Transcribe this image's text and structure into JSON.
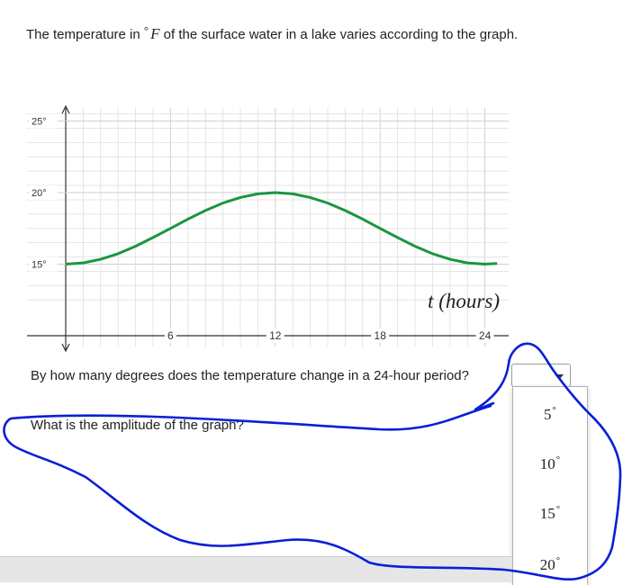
{
  "intro": {
    "text_before": "The temperature in ",
    "degree_sign": "°",
    "variable": "F",
    "text_after": " of the surface water in a lake varies according to the graph."
  },
  "chart_data": {
    "type": "line",
    "title": "",
    "xlabel": "t (hours)",
    "ylabel": "",
    "xlim": [
      0,
      24.7
    ],
    "ylim": [
      10,
      25
    ],
    "x_ticks": [
      6,
      12,
      18,
      24
    ],
    "x_tick_labels": [
      "6",
      "12",
      "18",
      "24"
    ],
    "y_ticks": [
      15,
      20,
      25
    ],
    "y_tick_labels": [
      "15°",
      "20°",
      "25°"
    ],
    "grid": true,
    "line_color": "#1a9641",
    "series": [
      {
        "x": [
          0,
          1,
          2,
          3,
          4,
          5,
          6,
          7,
          8,
          9,
          10,
          11,
          12,
          13,
          14,
          15,
          16,
          17,
          18,
          19,
          20,
          21,
          22,
          23,
          24,
          24.7
        ],
        "values": [
          15,
          15.09,
          15.34,
          15.73,
          16.25,
          16.86,
          17.5,
          18.15,
          18.75,
          19.27,
          19.66,
          19.91,
          20,
          19.91,
          19.66,
          19.27,
          18.75,
          18.15,
          17.5,
          16.86,
          16.25,
          15.73,
          15.34,
          15.09,
          15,
          15.05
        ]
      }
    ]
  },
  "questions": {
    "q1": "By how many degrees does the temperature change in a 24-hour period?",
    "q2": "What is the amplitude of the graph?"
  },
  "dropdown": {
    "options": [
      {
        "value": "5",
        "unit": "°"
      },
      {
        "value": "10",
        "unit": "°"
      },
      {
        "value": "15",
        "unit": "°"
      },
      {
        "value": "20",
        "unit": "°"
      }
    ]
  },
  "colors": {
    "curve": "#1a9641",
    "scribble": "#0a1fd6",
    "grid": "#e4e4e4"
  }
}
